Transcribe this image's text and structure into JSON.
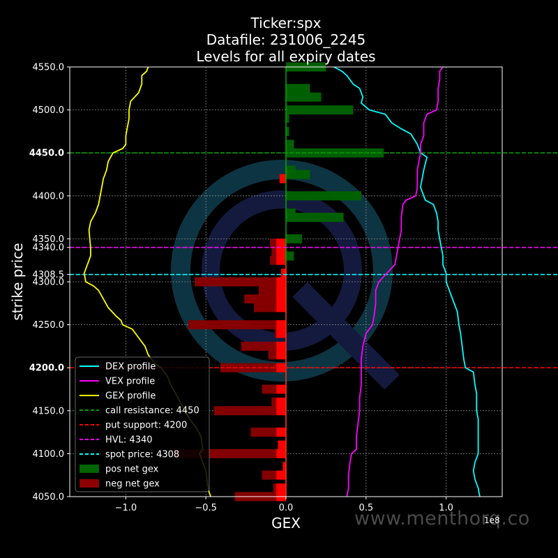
{
  "chart_data": {
    "type": "bar",
    "title_lines": [
      "Ticker:spx",
      "Datafile: 231006_2245",
      "Levels for all expiry dates"
    ],
    "xlabel": "GEX",
    "ylabel": "strike price",
    "x_scale_label": "1e8",
    "xlim": [
      -1.35,
      1.35
    ],
    "ylim": [
      4050,
      4550
    ],
    "xticks": [
      -1.0,
      -0.5,
      0.0,
      0.5,
      1.0
    ],
    "xtick_labels": [
      "−1.0",
      "−0.5",
      "0.0",
      "0.5",
      "1.0"
    ],
    "yticks": [
      4050,
      4100,
      4150,
      4200,
      4250,
      4300,
      4308.5,
      4340,
      4350,
      4400,
      4450,
      4500,
      4550
    ],
    "ytick_labels": [
      "4050.0",
      "4100.0",
      "4150.0",
      "4200.0",
      "4250.0",
      "4300.0",
      "4308.5",
      "4340.0",
      "4350.0",
      "4400.0",
      "4450.0",
      "4500.0",
      "4550.0"
    ],
    "bold_yticks": [
      4200,
      4450
    ],
    "grid": true,
    "legend_placement": "lower-left",
    "colors": {
      "background": "#000000",
      "dex": "#00ffff",
      "vex": "#ff00ff",
      "gex": "#ffff00",
      "pos_bar": "#006400",
      "neg_bar": "#8b0000",
      "neg_bar_light": "#ff0000",
      "call_resistance": "#00a000",
      "put_support": "#ff0000",
      "hvl": "#ff00ff",
      "spot": "#00ffff"
    },
    "levels": [
      {
        "name": "call resistance: 4450",
        "y": 4450,
        "color": "#00a000"
      },
      {
        "name": "put support: 4200",
        "y": 4200,
        "color": "#ff0000"
      },
      {
        "name": "HVL: 4340",
        "y": 4340,
        "color": "#ff00ff"
      },
      {
        "name": "spot price: 4308",
        "y": 4308.5,
        "color": "#00ffff"
      }
    ],
    "pos_bars": [
      {
        "strike": 4550,
        "gex": 0.25
      },
      {
        "strike": 4525,
        "gex": 0.15
      },
      {
        "strike": 4515,
        "gex": 0.22
      },
      {
        "strike": 4500,
        "gex": 0.42
      },
      {
        "strike": 4490,
        "gex": 0.02
      },
      {
        "strike": 4475,
        "gex": 0.02
      },
      {
        "strike": 4460,
        "gex": 0.05
      },
      {
        "strike": 4450,
        "gex": 0.61
      },
      {
        "strike": 4430,
        "gex": 0.06
      },
      {
        "strike": 4425,
        "gex": 0.15
      },
      {
        "strike": 4400,
        "gex": 0.47
      },
      {
        "strike": 4380,
        "gex": 0.06
      },
      {
        "strike": 4375,
        "gex": 0.36
      },
      {
        "strike": 4350,
        "gex": 0.1
      },
      {
        "strike": 4330,
        "gex": 0.05
      }
    ],
    "neg_bars": [
      {
        "strike": 4420,
        "gex": -0.04
      },
      {
        "strike": 4345,
        "gex": -0.1
      },
      {
        "strike": 4335,
        "gex": -0.09
      },
      {
        "strike": 4325,
        "gex": -0.1
      },
      {
        "strike": 4310,
        "gex": -0.03
      },
      {
        "strike": 4300,
        "gex": -0.57
      },
      {
        "strike": 4290,
        "gex": -0.17
      },
      {
        "strike": 4280,
        "gex": -0.26
      },
      {
        "strike": 4270,
        "gex": -0.2
      },
      {
        "strike": 4250,
        "gex": -0.61
      },
      {
        "strike": 4240,
        "gex": -0.07
      },
      {
        "strike": 4225,
        "gex": -0.28
      },
      {
        "strike": 4215,
        "gex": -0.11
      },
      {
        "strike": 4200,
        "gex": -0.41
      },
      {
        "strike": 4175,
        "gex": -0.15
      },
      {
        "strike": 4160,
        "gex": -0.09
      },
      {
        "strike": 4150,
        "gex": -0.45
      },
      {
        "strike": 4125,
        "gex": -0.22
      },
      {
        "strike": 4110,
        "gex": -0.05
      },
      {
        "strike": 4100,
        "gex": -0.7
      },
      {
        "strike": 4085,
        "gex": -0.02
      },
      {
        "strike": 4075,
        "gex": -0.15
      },
      {
        "strike": 4060,
        "gex": -0.08
      },
      {
        "strike": 4050,
        "gex": -0.32
      }
    ],
    "series": [
      {
        "name": "DEX profile",
        "color": "#00ffff",
        "points": [
          [
            0.3,
            4550
          ],
          [
            0.35,
            4545
          ],
          [
            0.38,
            4540
          ],
          [
            0.42,
            4530
          ],
          [
            0.46,
            4525
          ],
          [
            0.48,
            4515
          ],
          [
            0.47,
            4508
          ],
          [
            0.52,
            4500
          ],
          [
            0.62,
            4495
          ],
          [
            0.66,
            4485
          ],
          [
            0.72,
            4478
          ],
          [
            0.78,
            4472
          ],
          [
            0.82,
            4460
          ],
          [
            0.84,
            4450
          ],
          [
            0.88,
            4445
          ],
          [
            0.86,
            4430
          ],
          [
            0.84,
            4410
          ],
          [
            0.87,
            4395
          ],
          [
            0.92,
            4390
          ],
          [
            0.94,
            4380
          ],
          [
            0.95,
            4370
          ],
          [
            0.95,
            4360
          ],
          [
            0.96,
            4350
          ],
          [
            0.98,
            4330
          ],
          [
            0.98,
            4320
          ],
          [
            1.0,
            4310
          ],
          [
            1.0,
            4300
          ],
          [
            1.02,
            4290
          ],
          [
            1.05,
            4275
          ],
          [
            1.07,
            4265
          ],
          [
            1.08,
            4250
          ],
          [
            1.09,
            4240
          ],
          [
            1.1,
            4225
          ],
          [
            1.11,
            4210
          ],
          [
            1.12,
            4200
          ],
          [
            1.17,
            4195
          ],
          [
            1.18,
            4180
          ],
          [
            1.19,
            4170
          ],
          [
            1.19,
            4150
          ],
          [
            1.2,
            4140
          ],
          [
            1.2,
            4120
          ],
          [
            1.2,
            4100
          ],
          [
            1.18,
            4090
          ],
          [
            1.17,
            4080
          ],
          [
            1.18,
            4070
          ],
          [
            1.2,
            4060
          ],
          [
            1.21,
            4050
          ]
        ]
      },
      {
        "name": "VEX profile",
        "color": "#ff00ff",
        "points": [
          [
            0.98,
            4550
          ],
          [
            0.96,
            4545
          ],
          [
            0.96,
            4535
          ],
          [
            0.95,
            4525
          ],
          [
            0.95,
            4510
          ],
          [
            0.94,
            4500
          ],
          [
            0.88,
            4495
          ],
          [
            0.86,
            4485
          ],
          [
            0.86,
            4470
          ],
          [
            0.84,
            4460
          ],
          [
            0.84,
            4450
          ],
          [
            0.83,
            4440
          ],
          [
            0.82,
            4430
          ],
          [
            0.82,
            4420
          ],
          [
            0.82,
            4410
          ],
          [
            0.81,
            4400
          ],
          [
            0.75,
            4395
          ],
          [
            0.73,
            4390
          ],
          [
            0.72,
            4375
          ],
          [
            0.72,
            4360
          ],
          [
            0.71,
            4350
          ],
          [
            0.7,
            4340
          ],
          [
            0.68,
            4320
          ],
          [
            0.63,
            4310
          ],
          [
            0.58,
            4300
          ],
          [
            0.56,
            4290
          ],
          [
            0.56,
            4275
          ],
          [
            0.55,
            4260
          ],
          [
            0.54,
            4250
          ],
          [
            0.5,
            4240
          ],
          [
            0.48,
            4225
          ],
          [
            0.47,
            4210
          ],
          [
            0.47,
            4195
          ],
          [
            0.47,
            4180
          ],
          [
            0.46,
            4165
          ],
          [
            0.46,
            4150
          ],
          [
            0.45,
            4135
          ],
          [
            0.44,
            4120
          ],
          [
            0.44,
            4105
          ],
          [
            0.41,
            4100
          ],
          [
            0.4,
            4090
          ],
          [
            0.39,
            4075
          ],
          [
            0.39,
            4060
          ],
          [
            0.38,
            4050
          ]
        ]
      },
      {
        "name": "GEX profile",
        "color": "#ffff00",
        "points": [
          [
            -0.86,
            4550
          ],
          [
            -0.87,
            4545
          ],
          [
            -0.9,
            4540
          ],
          [
            -0.9,
            4530
          ],
          [
            -0.92,
            4520
          ],
          [
            -0.97,
            4510
          ],
          [
            -0.98,
            4500
          ],
          [
            -0.98,
            4490
          ],
          [
            -0.99,
            4480
          ],
          [
            -1.0,
            4470
          ],
          [
            -1.0,
            4460
          ],
          [
            -1.02,
            4455
          ],
          [
            -1.08,
            4450
          ],
          [
            -1.11,
            4440
          ],
          [
            -1.12,
            4430
          ],
          [
            -1.14,
            4420
          ],
          [
            -1.16,
            4400
          ],
          [
            -1.17,
            4390
          ],
          [
            -1.19,
            4380
          ],
          [
            -1.22,
            4370
          ],
          [
            -1.23,
            4360
          ],
          [
            -1.22,
            4340
          ],
          [
            -1.22,
            4330
          ],
          [
            -1.24,
            4320
          ],
          [
            -1.26,
            4310
          ],
          [
            -1.25,
            4300
          ],
          [
            -1.2,
            4295
          ],
          [
            -1.17,
            4290
          ],
          [
            -1.14,
            4280
          ],
          [
            -1.11,
            4270
          ],
          [
            -1.06,
            4260
          ],
          [
            -1.03,
            4255
          ],
          [
            -1.02,
            4250
          ],
          [
            -0.96,
            4245
          ],
          [
            -0.92,
            4235
          ],
          [
            -0.88,
            4225
          ],
          [
            -0.86,
            4215
          ],
          [
            -0.82,
            4205
          ],
          [
            -0.78,
            4200
          ],
          [
            -0.74,
            4190
          ],
          [
            -0.72,
            4180
          ],
          [
            -0.69,
            4170
          ],
          [
            -0.66,
            4160
          ],
          [
            -0.63,
            4150
          ],
          [
            -0.6,
            4140
          ],
          [
            -0.56,
            4130
          ],
          [
            -0.53,
            4120
          ],
          [
            -0.52,
            4105
          ],
          [
            -0.54,
            4100
          ],
          [
            -0.52,
            4090
          ],
          [
            -0.5,
            4080
          ],
          [
            -0.49,
            4065
          ],
          [
            -0.48,
            4055
          ],
          [
            -0.47,
            4050
          ]
        ]
      }
    ],
    "legend_entries": [
      {
        "label": "DEX profile",
        "kind": "line",
        "color": "#00ffff"
      },
      {
        "label": "VEX profile",
        "kind": "line",
        "color": "#ff00ff"
      },
      {
        "label": "GEX profile",
        "kind": "line",
        "color": "#ffff00"
      },
      {
        "label": "call resistance: 4450",
        "kind": "dash",
        "color": "#00a000"
      },
      {
        "label": "put support: 4200",
        "kind": "dash",
        "color": "#ff0000"
      },
      {
        "label": "HVL: 4340",
        "kind": "dash",
        "color": "#ff00ff"
      },
      {
        "label": "spot price: 4308",
        "kind": "dash",
        "color": "#00ffff"
      },
      {
        "label": "pos net gex",
        "kind": "patch",
        "color": "#006400"
      },
      {
        "label": "neg net gex",
        "kind": "patch",
        "color": "#8b0000"
      }
    ]
  },
  "watermark": "www.menthorq.co"
}
